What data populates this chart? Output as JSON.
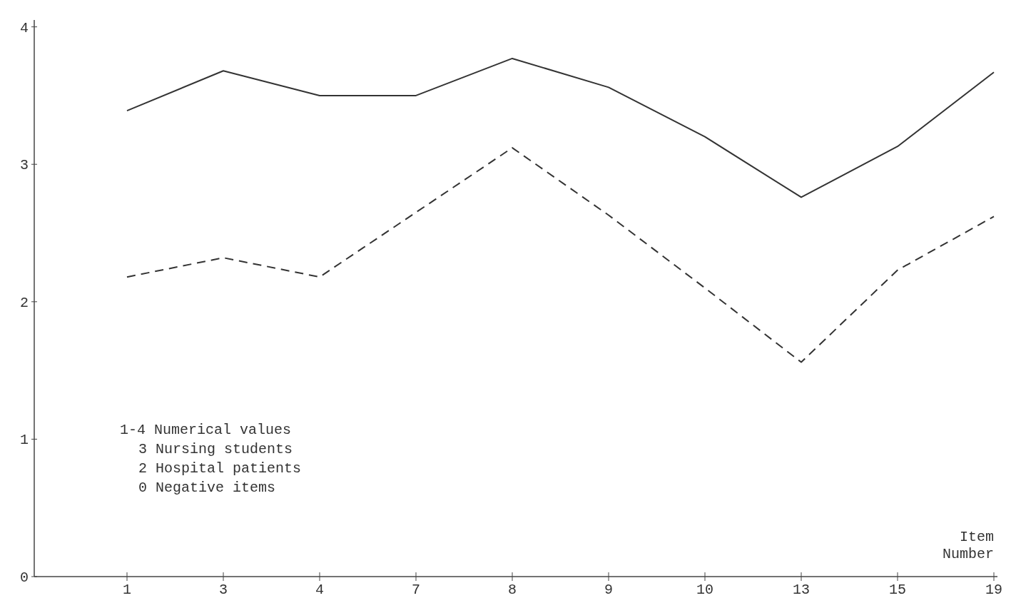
{
  "chart_data": {
    "type": "line",
    "xlabel": "Item Number",
    "categories": [
      "1",
      "3",
      "4",
      "7",
      "8",
      "9",
      "10",
      "13",
      "15",
      "19"
    ],
    "series": [
      {
        "color": "#333333",
        "line_style": "solid",
        "values": [
          3.39,
          3.68,
          3.5,
          3.5,
          3.77,
          3.56,
          3.2,
          2.76,
          3.13,
          3.67
        ]
      },
      {
        "color": "#333333",
        "line_style": "dashed",
        "values": [
          2.18,
          2.32,
          2.18,
          2.65,
          3.12,
          2.63,
          2.1,
          1.56,
          2.23,
          2.62
        ]
      }
    ],
    "ylim": [
      0,
      4.05
    ],
    "yticks": [
      0,
      1,
      2,
      3,
      4
    ],
    "grid": false,
    "marker": "none",
    "annotations": [
      "1-4 Numerical values",
      "3 Nursing students",
      "2 Hospital patients",
      "0 Negative items"
    ]
  }
}
